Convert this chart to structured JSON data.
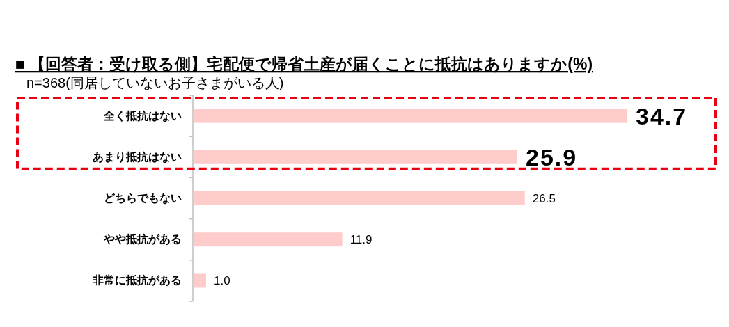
{
  "chart_data": {
    "type": "bar",
    "orientation": "horizontal",
    "title": "■ 【回答者：受け取る側】宅配便で帰省土産が届くことに抵抗はありますか(%)",
    "subtitle": "n=368(同居していないお子さまがいる人)",
    "categories": [
      "全く抵抗はない",
      "あまり抵抗はない",
      "どちらでもない",
      "やや抵抗がある",
      "非常に抵抗がある"
    ],
    "values": [
      34.7,
      25.9,
      26.5,
      11.9,
      1.0
    ],
    "color": "#ffcccc",
    "value_labels": [
      "34.7",
      "25.9",
      "26.5",
      "11.9",
      "1.0"
    ],
    "tick_labels": "y"
  }
}
